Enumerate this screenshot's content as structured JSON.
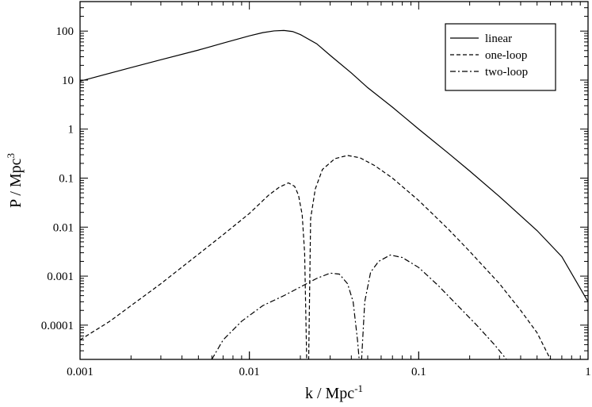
{
  "chart_data": {
    "type": "line",
    "xscale": "log",
    "yscale": "log",
    "xlim": [
      0.001,
      1
    ],
    "ylim": [
      2e-05,
      400
    ],
    "xlabel_main": "k / Mpc",
    "xlabel_exp": "-1",
    "ylabel_main": "P / Mpc",
    "ylabel_exp": "3",
    "x_ticks": [
      {
        "value": 0.001,
        "label": "0.001"
      },
      {
        "value": 0.01,
        "label": "0.01"
      },
      {
        "value": 0.1,
        "label": "0.1"
      },
      {
        "value": 1,
        "label": "1"
      }
    ],
    "y_ticks": [
      {
        "value": 0.0001,
        "label": "0.0001"
      },
      {
        "value": 0.001,
        "label": "0.001"
      },
      {
        "value": 0.01,
        "label": "0.01"
      },
      {
        "value": 0.1,
        "label": "0.1"
      },
      {
        "value": 1,
        "label": "1"
      },
      {
        "value": 10,
        "label": "10"
      },
      {
        "value": 100,
        "label": "100"
      }
    ],
    "grid": false,
    "legend_position": "top-right",
    "series": [
      {
        "name": "linear",
        "style": "solid",
        "points": [
          [
            0.001,
            9.5
          ],
          [
            0.002,
            18
          ],
          [
            0.003,
            26
          ],
          [
            0.005,
            41
          ],
          [
            0.007,
            57
          ],
          [
            0.01,
            80
          ],
          [
            0.012,
            93
          ],
          [
            0.014,
            101
          ],
          [
            0.016,
            103
          ],
          [
            0.018,
            98
          ],
          [
            0.02,
            85
          ],
          [
            0.025,
            55
          ],
          [
            0.03,
            32
          ],
          [
            0.04,
            14
          ],
          [
            0.05,
            7
          ],
          [
            0.07,
            2.8
          ],
          [
            0.1,
            1.0
          ],
          [
            0.15,
            0.32
          ],
          [
            0.2,
            0.14
          ],
          [
            0.3,
            0.042
          ],
          [
            0.5,
            0.0085
          ],
          [
            0.7,
            0.0025
          ],
          [
            1.0,
            0.0003
          ]
        ]
      },
      {
        "name": "one-loop",
        "style": "dashed",
        "points": [
          [
            0.001,
            5e-05
          ],
          [
            0.0015,
            0.00012
          ],
          [
            0.002,
            0.00025
          ],
          [
            0.003,
            0.0007
          ],
          [
            0.005,
            0.0028
          ],
          [
            0.007,
            0.007
          ],
          [
            0.01,
            0.019
          ],
          [
            0.013,
            0.045
          ],
          [
            0.015,
            0.065
          ],
          [
            0.017,
            0.08
          ],
          [
            0.0185,
            0.068
          ],
          [
            0.0195,
            0.045
          ],
          [
            0.0205,
            0.018
          ],
          [
            0.0212,
            0.003
          ],
          [
            0.0218,
            2e-05
          ],
          [
            0.0224,
            2e-05
          ],
          [
            0.023,
            0.015
          ],
          [
            0.0245,
            0.06
          ],
          [
            0.027,
            0.15
          ],
          [
            0.032,
            0.25
          ],
          [
            0.038,
            0.29
          ],
          [
            0.045,
            0.26
          ],
          [
            0.055,
            0.18
          ],
          [
            0.07,
            0.1
          ],
          [
            0.1,
            0.035
          ],
          [
            0.15,
            0.009
          ],
          [
            0.2,
            0.0032
          ],
          [
            0.3,
            0.0007
          ],
          [
            0.4,
            0.0002
          ],
          [
            0.5,
            7e-05
          ],
          [
            0.6,
            2e-05
          ]
        ]
      },
      {
        "name": "two-loop",
        "style": "dashdot",
        "points": [
          [
            0.006,
            2e-05
          ],
          [
            0.007,
            5e-05
          ],
          [
            0.009,
            0.00012
          ],
          [
            0.012,
            0.00025
          ],
          [
            0.016,
            0.0004
          ],
          [
            0.02,
            0.0006
          ],
          [
            0.025,
            0.0009
          ],
          [
            0.03,
            0.00115
          ],
          [
            0.034,
            0.0011
          ],
          [
            0.038,
            0.0007
          ],
          [
            0.041,
            0.0003
          ],
          [
            0.0435,
            5e-05
          ],
          [
            0.0445,
            2e-05
          ],
          [
            0.046,
            2e-05
          ],
          [
            0.048,
            0.0003
          ],
          [
            0.052,
            0.0012
          ],
          [
            0.058,
            0.002
          ],
          [
            0.068,
            0.0027
          ],
          [
            0.08,
            0.0024
          ],
          [
            0.1,
            0.0015
          ],
          [
            0.13,
            0.00065
          ],
          [
            0.17,
            0.00025
          ],
          [
            0.22,
            0.0001
          ],
          [
            0.28,
            4e-05
          ],
          [
            0.33,
            2e-05
          ]
        ]
      }
    ]
  }
}
